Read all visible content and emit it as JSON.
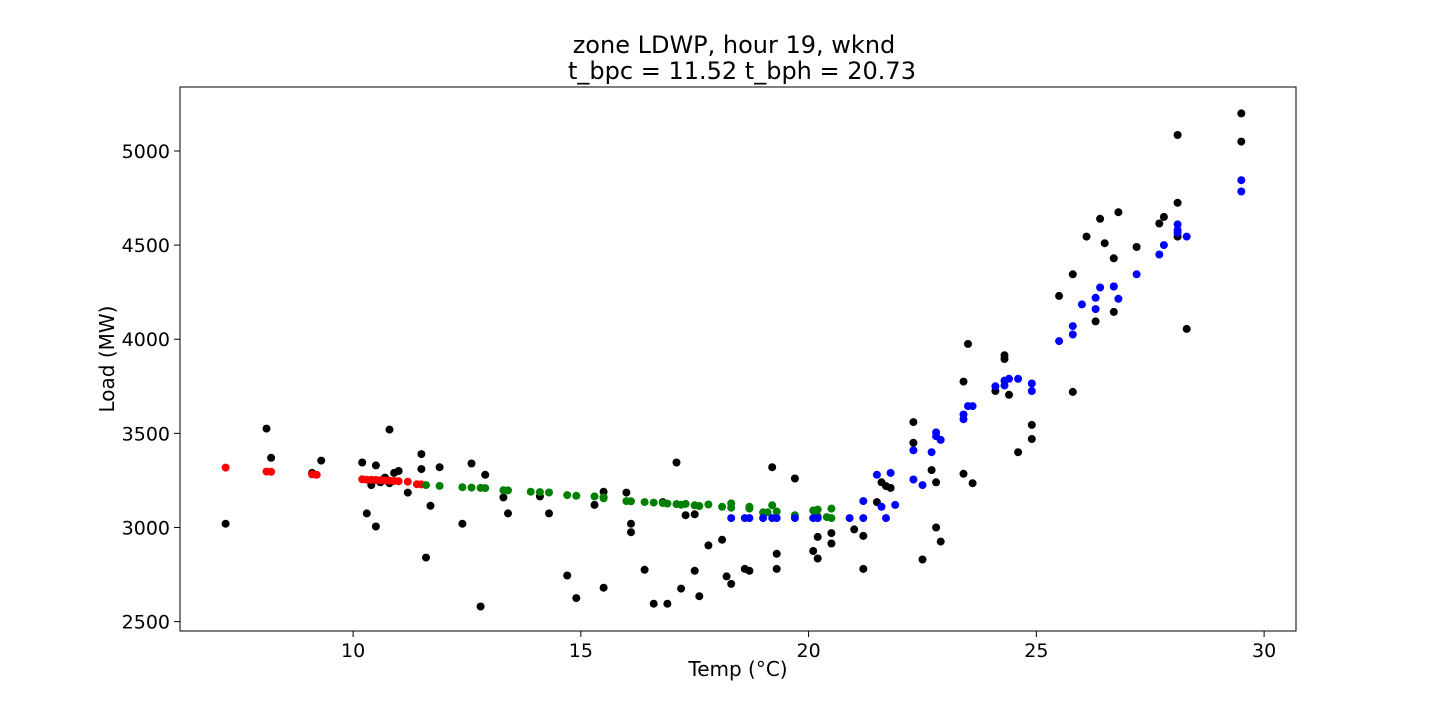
{
  "chart_data": {
    "type": "scatter",
    "title_line1": "zone LDWP, hour 19, wknd",
    "title_line2": "t_bpc = 11.52  t_bph = 20.73",
    "xlabel": "Temp (°C)",
    "ylabel": "Load (MW)",
    "xlim": [
      6.2,
      30.7
    ],
    "ylim": [
      2450,
      5340
    ],
    "xticks": [
      10,
      15,
      20,
      25,
      30
    ],
    "yticks": [
      2500,
      3000,
      3500,
      4000,
      4500,
      5000
    ],
    "grid": false,
    "series": [
      {
        "color": "#000000",
        "points": [
          [
            7.2,
            3020
          ],
          [
            8.1,
            3525
          ],
          [
            8.2,
            3370
          ],
          [
            9.1,
            3290
          ],
          [
            9.3,
            3355
          ],
          [
            10.2,
            3345
          ],
          [
            10.3,
            3075
          ],
          [
            10.4,
            3225
          ],
          [
            10.5,
            3005
          ],
          [
            10.5,
            3330
          ],
          [
            10.6,
            3240
          ],
          [
            10.7,
            3265
          ],
          [
            10.8,
            3520
          ],
          [
            10.8,
            3235
          ],
          [
            10.9,
            3290
          ],
          [
            11.0,
            3300
          ],
          [
            11.2,
            3185
          ],
          [
            11.5,
            3390
          ],
          [
            11.5,
            3310
          ],
          [
            11.6,
            2840
          ],
          [
            11.7,
            3115
          ],
          [
            11.9,
            3320
          ],
          [
            12.4,
            3020
          ],
          [
            12.6,
            3340
          ],
          [
            12.8,
            2580
          ],
          [
            12.9,
            3280
          ],
          [
            13.3,
            3160
          ],
          [
            13.4,
            3075
          ],
          [
            14.1,
            3165
          ],
          [
            14.3,
            3075
          ],
          [
            14.7,
            2745
          ],
          [
            14.9,
            2625
          ],
          [
            15.3,
            3120
          ],
          [
            15.5,
            3190
          ],
          [
            15.5,
            3160
          ],
          [
            15.5,
            2680
          ],
          [
            16.0,
            3185
          ],
          [
            16.1,
            3020
          ],
          [
            16.1,
            2975
          ],
          [
            16.4,
            2775
          ],
          [
            16.6,
            2595
          ],
          [
            16.8,
            3135
          ],
          [
            16.9,
            2595
          ],
          [
            17.1,
            3345
          ],
          [
            17.2,
            2675
          ],
          [
            17.3,
            3065
          ],
          [
            17.5,
            3070
          ],
          [
            17.5,
            2770
          ],
          [
            17.6,
            2635
          ],
          [
            17.8,
            2905
          ],
          [
            18.1,
            2935
          ],
          [
            18.2,
            2740
          ],
          [
            18.3,
            2700
          ],
          [
            18.6,
            2780
          ],
          [
            18.7,
            2770
          ],
          [
            19.2,
            3320
          ],
          [
            19.3,
            2860
          ],
          [
            19.3,
            2780
          ],
          [
            19.7,
            3260
          ],
          [
            20.1,
            2875
          ],
          [
            20.2,
            2950
          ],
          [
            20.2,
            2835
          ],
          [
            20.5,
            2915
          ],
          [
            20.5,
            2970
          ],
          [
            21.0,
            2990
          ],
          [
            21.2,
            2955
          ],
          [
            21.2,
            2780
          ],
          [
            21.5,
            3135
          ],
          [
            21.6,
            3240
          ],
          [
            21.7,
            3220
          ],
          [
            21.8,
            3210
          ],
          [
            22.3,
            3560
          ],
          [
            22.3,
            3450
          ],
          [
            22.5,
            2830
          ],
          [
            22.7,
            3305
          ],
          [
            22.8,
            3240
          ],
          [
            22.8,
            3000
          ],
          [
            22.9,
            2925
          ],
          [
            23.4,
            3775
          ],
          [
            23.4,
            3285
          ],
          [
            23.5,
            3975
          ],
          [
            23.6,
            3235
          ],
          [
            24.1,
            3725
          ],
          [
            24.3,
            3915
          ],
          [
            24.3,
            3895
          ],
          [
            24.4,
            3705
          ],
          [
            24.6,
            3400
          ],
          [
            24.9,
            3545
          ],
          [
            24.9,
            3470
          ],
          [
            25.5,
            4230
          ],
          [
            25.8,
            4345
          ],
          [
            25.8,
            3720
          ],
          [
            26.1,
            4545
          ],
          [
            26.3,
            4095
          ],
          [
            26.4,
            4640
          ],
          [
            26.5,
            4510
          ],
          [
            26.7,
            4430
          ],
          [
            26.7,
            4145
          ],
          [
            26.8,
            4675
          ],
          [
            27.2,
            4490
          ],
          [
            27.7,
            4615
          ],
          [
            27.8,
            4650
          ],
          [
            28.1,
            4725
          ],
          [
            28.1,
            4545
          ],
          [
            28.1,
            5085
          ],
          [
            28.3,
            4055
          ],
          [
            29.5,
            5200
          ],
          [
            29.5,
            5050
          ]
        ]
      },
      {
        "color": "#ff0000",
        "points": [
          [
            7.2,
            3318
          ],
          [
            8.1,
            3297
          ],
          [
            8.2,
            3296
          ],
          [
            9.1,
            3282
          ],
          [
            9.2,
            3280
          ],
          [
            10.2,
            3256
          ],
          [
            10.3,
            3254
          ],
          [
            10.4,
            3253
          ],
          [
            10.5,
            3252
          ],
          [
            10.6,
            3251
          ],
          [
            10.7,
            3250
          ],
          [
            10.8,
            3249
          ],
          [
            10.9,
            3247
          ],
          [
            11.0,
            3246
          ],
          [
            11.2,
            3243
          ],
          [
            11.4,
            3230
          ],
          [
            11.5,
            3229
          ]
        ]
      },
      {
        "color": "#008000",
        "points": [
          [
            11.6,
            3225
          ],
          [
            11.9,
            3221
          ],
          [
            12.4,
            3214
          ],
          [
            12.6,
            3212
          ],
          [
            12.8,
            3210
          ],
          [
            12.9,
            3209
          ],
          [
            13.3,
            3198
          ],
          [
            13.4,
            3197
          ],
          [
            13.9,
            3190
          ],
          [
            14.1,
            3188
          ],
          [
            14.3,
            3186
          ],
          [
            14.7,
            3172
          ],
          [
            14.9,
            3168
          ],
          [
            15.3,
            3165
          ],
          [
            15.5,
            3160
          ],
          [
            15.5,
            3155
          ],
          [
            16.0,
            3140
          ],
          [
            16.1,
            3139
          ],
          [
            16.4,
            3135
          ],
          [
            16.6,
            3132
          ],
          [
            16.8,
            3130
          ],
          [
            16.9,
            3127
          ],
          [
            17.1,
            3124
          ],
          [
            17.2,
            3121
          ],
          [
            17.3,
            3125
          ],
          [
            17.5,
            3118
          ],
          [
            17.6,
            3114
          ],
          [
            17.8,
            3122
          ],
          [
            18.1,
            3110
          ],
          [
            18.3,
            3105
          ],
          [
            18.3,
            3128
          ],
          [
            18.7,
            3100
          ],
          [
            18.7,
            3110
          ],
          [
            19.0,
            3080
          ],
          [
            19.1,
            3080
          ],
          [
            19.2,
            3118
          ],
          [
            19.3,
            3085
          ],
          [
            19.7,
            3065
          ],
          [
            20.1,
            3090
          ],
          [
            20.2,
            3095
          ],
          [
            20.2,
            3060
          ],
          [
            20.4,
            3055
          ],
          [
            20.5,
            3100
          ],
          [
            20.5,
            3050
          ]
        ]
      },
      {
        "color": "#0000ff",
        "points": [
          [
            18.3,
            3050
          ],
          [
            18.6,
            3050
          ],
          [
            18.7,
            3050
          ],
          [
            19.0,
            3050
          ],
          [
            19.2,
            3050
          ],
          [
            19.3,
            3050
          ],
          [
            19.7,
            3050
          ],
          [
            20.1,
            3050
          ],
          [
            20.2,
            3050
          ],
          [
            20.9,
            3050
          ],
          [
            21.2,
            3050
          ],
          [
            21.2,
            3140
          ],
          [
            21.5,
            3280
          ],
          [
            21.6,
            3110
          ],
          [
            21.7,
            3050
          ],
          [
            21.8,
            3290
          ],
          [
            21.9,
            3120
          ],
          [
            22.3,
            3410
          ],
          [
            22.3,
            3255
          ],
          [
            22.5,
            3225
          ],
          [
            22.7,
            3400
          ],
          [
            22.8,
            3505
          ],
          [
            22.8,
            3485
          ],
          [
            22.9,
            3465
          ],
          [
            23.4,
            3575
          ],
          [
            23.4,
            3600
          ],
          [
            23.5,
            3645
          ],
          [
            23.6,
            3645
          ],
          [
            24.1,
            3750
          ],
          [
            24.3,
            3780
          ],
          [
            24.3,
            3755
          ],
          [
            24.4,
            3790
          ],
          [
            24.6,
            3790
          ],
          [
            24.9,
            3765
          ],
          [
            24.9,
            3725
          ],
          [
            25.5,
            3990
          ],
          [
            25.8,
            4070
          ],
          [
            25.8,
            4025
          ],
          [
            26.0,
            4185
          ],
          [
            26.3,
            4160
          ],
          [
            26.3,
            4220
          ],
          [
            26.4,
            4275
          ],
          [
            26.7,
            4280
          ],
          [
            26.7,
            4280
          ],
          [
            26.8,
            4215
          ],
          [
            27.2,
            4345
          ],
          [
            27.7,
            4450
          ],
          [
            27.8,
            4500
          ],
          [
            28.1,
            4565
          ],
          [
            28.1,
            4580
          ],
          [
            28.1,
            4610
          ],
          [
            28.3,
            4545
          ],
          [
            29.5,
            4785
          ],
          [
            29.5,
            4845
          ]
        ]
      }
    ]
  }
}
